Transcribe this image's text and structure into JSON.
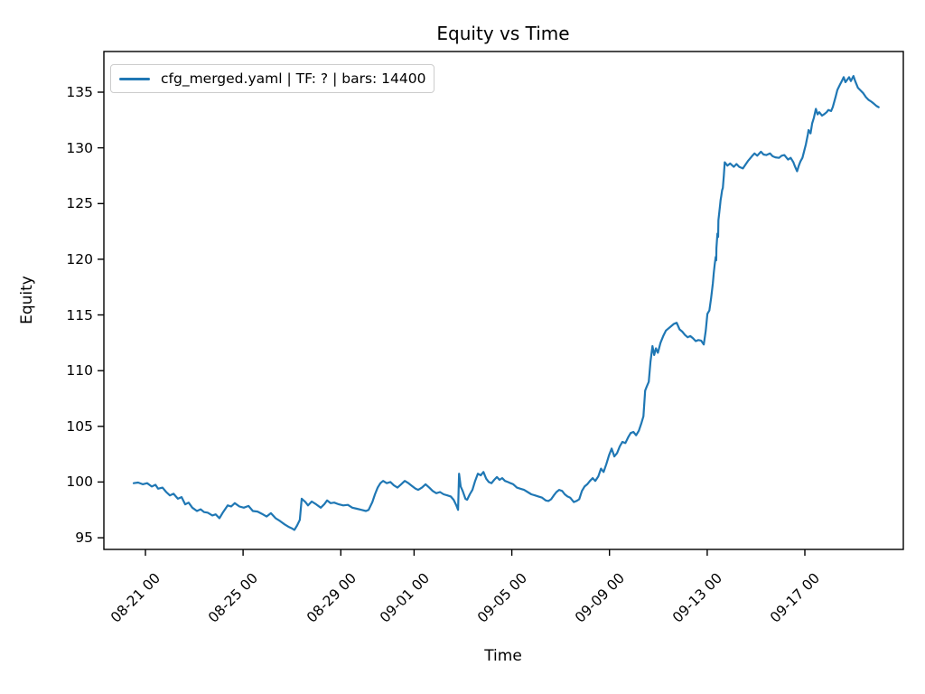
{
  "figure": {
    "background": "#ffffff",
    "colors": {
      "line": "#1f77b4",
      "spine": "#000000",
      "legend_border": "#cccccc",
      "text": "#000000"
    }
  },
  "chart_data": {
    "type": "line",
    "title": "Equity vs Time",
    "xlabel": "Time",
    "ylabel": "Equity",
    "grid": false,
    "legend": {
      "position": "upper left",
      "entries": [
        {
          "label": "cfg_merged.yaml | TF: ? | bars: 14400",
          "color": "#1f77b4"
        }
      ]
    },
    "line_color": "#1f77b4",
    "x_axis": {
      "note": "t = days since first plotted bar (~08-20 12:00); tick labels are MM-DD HH",
      "range": [
        -1.2,
        31.53
      ],
      "ticks": [
        {
          "label": "08-21 00",
          "t": 0.5
        },
        {
          "label": "08-25 00",
          "t": 4.5
        },
        {
          "label": "08-29 00",
          "t": 8.5
        },
        {
          "label": "09-01 00",
          "t": 11.5
        },
        {
          "label": "09-05 00",
          "t": 15.5
        },
        {
          "label": "09-09 00",
          "t": 19.5
        },
        {
          "label": "09-13 00",
          "t": 23.5
        },
        {
          "label": "09-17 00",
          "t": 27.5
        }
      ]
    },
    "y_axis": {
      "range": [
        93.95,
        138.65
      ],
      "ticks": [
        95,
        100,
        105,
        110,
        115,
        120,
        125,
        130,
        135
      ]
    },
    "series": [
      {
        "name": "cfg_merged.yaml | TF: ? | bars: 14400",
        "points": [
          [
            0.02,
            99.9
          ],
          [
            0.2,
            99.95
          ],
          [
            0.39,
            99.8
          ],
          [
            0.57,
            99.9
          ],
          [
            0.76,
            99.6
          ],
          [
            0.91,
            99.75
          ],
          [
            1.02,
            99.4
          ],
          [
            1.2,
            99.5
          ],
          [
            1.35,
            99.1
          ],
          [
            1.5,
            98.8
          ],
          [
            1.65,
            98.95
          ],
          [
            1.83,
            98.5
          ],
          [
            1.98,
            98.65
          ],
          [
            2.13,
            98
          ],
          [
            2.27,
            98.15
          ],
          [
            2.42,
            97.7
          ],
          [
            2.61,
            97.4
          ],
          [
            2.76,
            97.55
          ],
          [
            2.9,
            97.3
          ],
          [
            3.05,
            97.25
          ],
          [
            3.24,
            97
          ],
          [
            3.38,
            97.1
          ],
          [
            3.53,
            96.75
          ],
          [
            3.68,
            97.3
          ],
          [
            3.87,
            97.9
          ],
          [
            4.01,
            97.8
          ],
          [
            4.16,
            98.1
          ],
          [
            4.35,
            97.8
          ],
          [
            4.53,
            97.7
          ],
          [
            4.72,
            97.85
          ],
          [
            4.9,
            97.4
          ],
          [
            5.09,
            97.35
          ],
          [
            5.27,
            97.15
          ],
          [
            5.46,
            96.9
          ],
          [
            5.64,
            97.2
          ],
          [
            5.83,
            96.75
          ],
          [
            6.01,
            96.5
          ],
          [
            6.2,
            96.2
          ],
          [
            6.38,
            95.95
          ],
          [
            6.49,
            95.85
          ],
          [
            6.6,
            95.7
          ],
          [
            6.71,
            96.1
          ],
          [
            6.82,
            96.6
          ],
          [
            6.9,
            98.5
          ],
          [
            7.05,
            98.2
          ],
          [
            7.16,
            97.9
          ],
          [
            7.31,
            98.25
          ],
          [
            7.49,
            98
          ],
          [
            7.68,
            97.7
          ],
          [
            7.82,
            98
          ],
          [
            7.94,
            98.35
          ],
          [
            8.08,
            98.1
          ],
          [
            8.23,
            98.15
          ],
          [
            8.42,
            98
          ],
          [
            8.6,
            97.9
          ],
          [
            8.79,
            97.95
          ],
          [
            8.97,
            97.7
          ],
          [
            9.16,
            97.6
          ],
          [
            9.34,
            97.5
          ],
          [
            9.53,
            97.4
          ],
          [
            9.64,
            97.5
          ],
          [
            9.79,
            98.2
          ],
          [
            9.9,
            98.9
          ],
          [
            10.01,
            99.5
          ],
          [
            10.12,
            99.9
          ],
          [
            10.23,
            100.1
          ],
          [
            10.38,
            99.9
          ],
          [
            10.53,
            100
          ],
          [
            10.67,
            99.7
          ],
          [
            10.82,
            99.5
          ],
          [
            10.97,
            99.8
          ],
          [
            11.12,
            100.1
          ],
          [
            11.27,
            99.9
          ],
          [
            11.41,
            99.65
          ],
          [
            11.56,
            99.4
          ],
          [
            11.67,
            99.3
          ],
          [
            11.82,
            99.5
          ],
          [
            11.97,
            99.8
          ],
          [
            12.12,
            99.5
          ],
          [
            12.26,
            99.2
          ],
          [
            12.41,
            99
          ],
          [
            12.56,
            99.1
          ],
          [
            12.71,
            98.9
          ],
          [
            12.86,
            98.8
          ],
          [
            13,
            98.7
          ],
          [
            13.12,
            98.4
          ],
          [
            13.23,
            97.9
          ],
          [
            13.3,
            97.5
          ],
          [
            13.34,
            100.75
          ],
          [
            13.41,
            99.6
          ],
          [
            13.49,
            99.2
          ],
          [
            13.6,
            98.5
          ],
          [
            13.67,
            98.4
          ],
          [
            13.78,
            98.9
          ],
          [
            13.89,
            99.3
          ],
          [
            14,
            100.1
          ],
          [
            14.11,
            100.75
          ],
          [
            14.23,
            100.6
          ],
          [
            14.34,
            100.9
          ],
          [
            14.45,
            100.3
          ],
          [
            14.56,
            100
          ],
          [
            14.67,
            99.9
          ],
          [
            14.78,
            100.2
          ],
          [
            14.89,
            100.45
          ],
          [
            15,
            100.2
          ],
          [
            15.11,
            100.35
          ],
          [
            15.22,
            100.1
          ],
          [
            15.34,
            100
          ],
          [
            15.45,
            99.9
          ],
          [
            15.56,
            99.8
          ],
          [
            15.71,
            99.5
          ],
          [
            15.85,
            99.4
          ],
          [
            16,
            99.3
          ],
          [
            16.15,
            99.1
          ],
          [
            16.3,
            98.9
          ],
          [
            16.45,
            98.8
          ],
          [
            16.59,
            98.7
          ],
          [
            16.74,
            98.6
          ],
          [
            16.89,
            98.35
          ],
          [
            17,
            98.3
          ],
          [
            17.11,
            98.45
          ],
          [
            17.22,
            98.8
          ],
          [
            17.33,
            99.1
          ],
          [
            17.44,
            99.3
          ],
          [
            17.56,
            99.2
          ],
          [
            17.67,
            98.9
          ],
          [
            17.78,
            98.7
          ],
          [
            17.89,
            98.6
          ],
          [
            18.04,
            98.2
          ],
          [
            18.15,
            98.3
          ],
          [
            18.26,
            98.45
          ],
          [
            18.37,
            99.2
          ],
          [
            18.48,
            99.6
          ],
          [
            18.59,
            99.8
          ],
          [
            18.7,
            100.1
          ],
          [
            18.81,
            100.35
          ],
          [
            18.92,
            100.1
          ],
          [
            19.04,
            100.5
          ],
          [
            19.15,
            101.2
          ],
          [
            19.26,
            100.9
          ],
          [
            19.37,
            101.6
          ],
          [
            19.48,
            102.4
          ],
          [
            19.59,
            103
          ],
          [
            19.7,
            102.3
          ],
          [
            19.81,
            102.6
          ],
          [
            19.92,
            103.2
          ],
          [
            20.03,
            103.6
          ],
          [
            20.15,
            103.5
          ],
          [
            20.26,
            104
          ],
          [
            20.37,
            104.4
          ],
          [
            20.48,
            104.5
          ],
          [
            20.59,
            104.2
          ],
          [
            20.7,
            104.6
          ],
          [
            20.81,
            105.3
          ],
          [
            20.89,
            105.9
          ],
          [
            20.96,
            108.2
          ],
          [
            21.03,
            108.6
          ],
          [
            21.11,
            109
          ],
          [
            21.18,
            110.8
          ],
          [
            21.26,
            112.2
          ],
          [
            21.33,
            111.4
          ],
          [
            21.4,
            112
          ],
          [
            21.48,
            111.6
          ],
          [
            21.59,
            112.5
          ],
          [
            21.7,
            113.1
          ],
          [
            21.81,
            113.6
          ],
          [
            21.92,
            113.8
          ],
          [
            22.03,
            114
          ],
          [
            22.14,
            114.2
          ],
          [
            22.25,
            114.3
          ],
          [
            22.37,
            113.7
          ],
          [
            22.48,
            113.5
          ],
          [
            22.59,
            113.2
          ],
          [
            22.7,
            113
          ],
          [
            22.81,
            113.1
          ],
          [
            22.92,
            112.9
          ],
          [
            23.03,
            112.65
          ],
          [
            23.14,
            112.75
          ],
          [
            23.25,
            112.7
          ],
          [
            23.36,
            112.35
          ],
          [
            23.44,
            113.6
          ],
          [
            23.51,
            115.1
          ],
          [
            23.59,
            115.4
          ],
          [
            23.66,
            116.5
          ],
          [
            23.73,
            117.8
          ],
          [
            23.77,
            118.8
          ],
          [
            23.81,
            119.6
          ],
          [
            23.85,
            120.2
          ],
          [
            23.87,
            119.9
          ],
          [
            23.88,
            121
          ],
          [
            23.92,
            122.3
          ],
          [
            23.95,
            122
          ],
          [
            23.96,
            123.5
          ],
          [
            24,
            124.3
          ],
          [
            24.03,
            124.9
          ],
          [
            24.05,
            125.3
          ],
          [
            24.07,
            125.6
          ],
          [
            24.11,
            126.2
          ],
          [
            24.14,
            126.4
          ],
          [
            24.18,
            127.5
          ],
          [
            24.22,
            128.7
          ],
          [
            24.33,
            128.4
          ],
          [
            24.44,
            128.6
          ],
          [
            24.59,
            128.3
          ],
          [
            24.7,
            128.55
          ],
          [
            24.81,
            128.3
          ],
          [
            24.96,
            128.15
          ],
          [
            25.07,
            128.5
          ],
          [
            25.18,
            128.85
          ],
          [
            25.33,
            129.25
          ],
          [
            25.44,
            129.5
          ],
          [
            25.55,
            129.3
          ],
          [
            25.7,
            129.65
          ],
          [
            25.81,
            129.4
          ],
          [
            25.92,
            129.35
          ],
          [
            26.07,
            129.5
          ],
          [
            26.18,
            129.25
          ],
          [
            26.29,
            129.15
          ],
          [
            26.44,
            129.1
          ],
          [
            26.55,
            129.3
          ],
          [
            26.66,
            129.35
          ],
          [
            26.81,
            128.95
          ],
          [
            26.92,
            129.1
          ],
          [
            27.03,
            128.7
          ],
          [
            27.1,
            128.3
          ],
          [
            27.18,
            127.9
          ],
          [
            27.25,
            128.4
          ],
          [
            27.32,
            128.8
          ],
          [
            27.4,
            129.1
          ],
          [
            27.47,
            129.7
          ],
          [
            27.54,
            130.3
          ],
          [
            27.62,
            131.2
          ],
          [
            27.65,
            131.6
          ],
          [
            27.73,
            131.3
          ],
          [
            27.8,
            132.2
          ],
          [
            27.87,
            132.7
          ],
          [
            27.95,
            133.5
          ],
          [
            28.02,
            133
          ],
          [
            28.09,
            133.2
          ],
          [
            28.2,
            132.9
          ],
          [
            28.28,
            133
          ],
          [
            28.39,
            133.2
          ],
          [
            28.46,
            133.4
          ],
          [
            28.57,
            133.3
          ],
          [
            28.64,
            133.65
          ],
          [
            28.76,
            134.6
          ],
          [
            28.83,
            135.2
          ],
          [
            28.94,
            135.7
          ],
          [
            29.01,
            136
          ],
          [
            29.09,
            136.35
          ],
          [
            29.16,
            135.9
          ],
          [
            29.23,
            136.1
          ],
          [
            29.31,
            136.35
          ],
          [
            29.38,
            136
          ],
          [
            29.49,
            136.45
          ],
          [
            29.56,
            136
          ],
          [
            29.67,
            135.4
          ],
          [
            29.78,
            135.15
          ],
          [
            29.89,
            134.9
          ],
          [
            30,
            134.55
          ],
          [
            30.11,
            134.3
          ],
          [
            30.22,
            134.15
          ],
          [
            30.33,
            133.95
          ],
          [
            30.44,
            133.75
          ],
          [
            30.52,
            133.65
          ]
        ]
      }
    ]
  }
}
